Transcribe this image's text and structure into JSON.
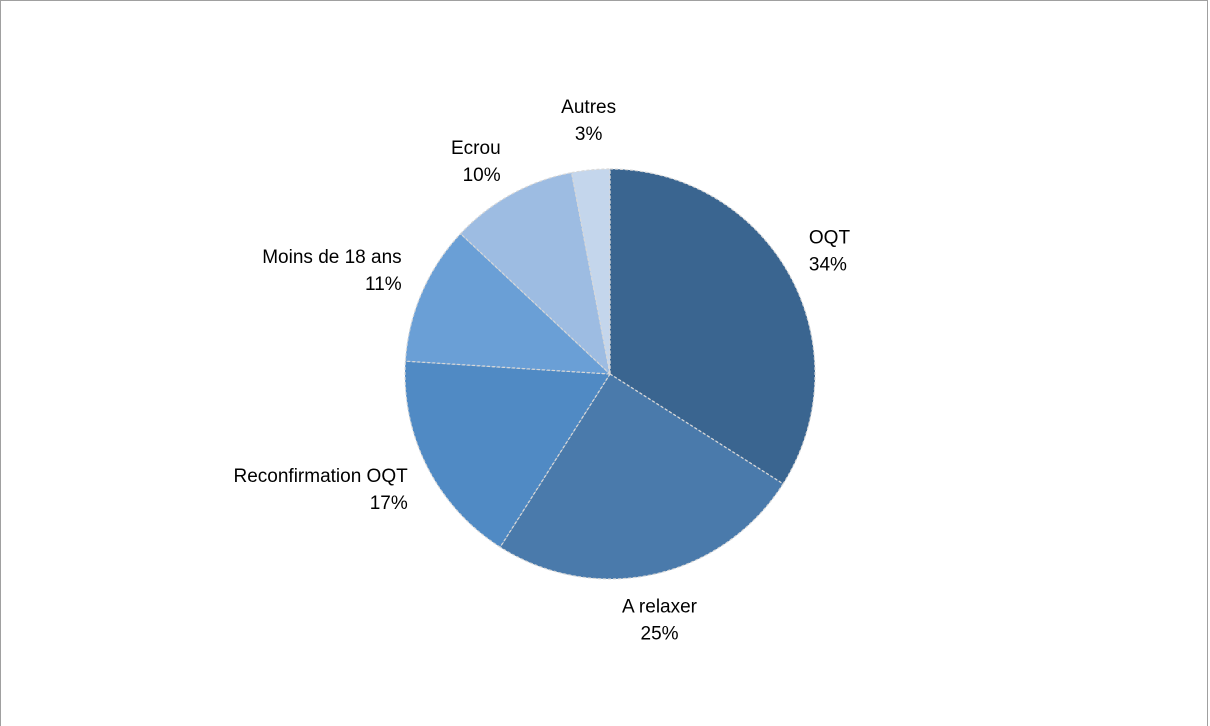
{
  "chart_data": {
    "type": "pie",
    "categories": [
      "OQT",
      "A relaxer",
      "Reconfirmation OQT",
      "Moins de 18 ans",
      "Ecrou",
      "Autres"
    ],
    "values": [
      34,
      25,
      17,
      11,
      10,
      3
    ],
    "value_labels": [
      "34%",
      "25%",
      "17%",
      "11%",
      "10%",
      "3%"
    ],
    "colors": [
      "#3a6590",
      "#4a7aab",
      "#508ac4",
      "#6a9fd6",
      "#9dbce2",
      "#c4d6ec"
    ]
  }
}
